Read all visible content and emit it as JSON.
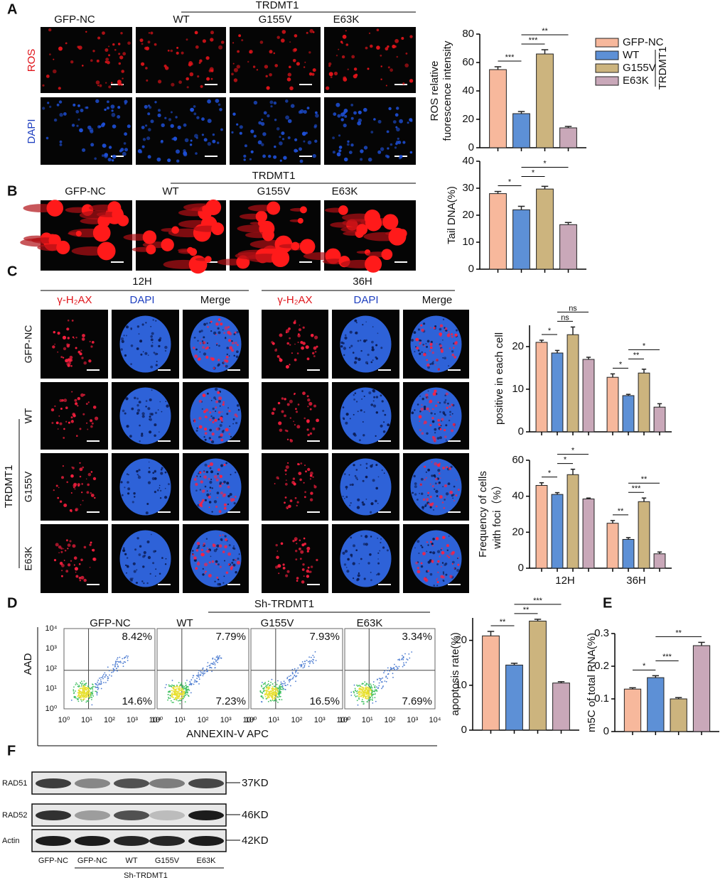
{
  "panel_labels": [
    "A",
    "B",
    "C",
    "D",
    "E",
    "F"
  ],
  "panel_a": {
    "columns": [
      "GFP-NC",
      "WT",
      "G155V",
      "E63K"
    ],
    "group_label": "TRDMT1",
    "rows": [
      "ROS",
      "DAPI"
    ]
  },
  "panel_b": {
    "columns": [
      "GFP-NC",
      "WT",
      "G155V",
      "E63K"
    ],
    "group_label": "TRDMT1"
  },
  "panel_c": {
    "times": [
      {
        "label": "12H",
        "channels": [
          "γ-H₂AX",
          "DAPI",
          "Merge"
        ]
      },
      {
        "label": "36H",
        "channels": [
          "γ-H₂AX",
          "DAPI",
          "Merge"
        ]
      }
    ],
    "rows": [
      "GFP-NC",
      "WT",
      "G155V",
      "E63K"
    ],
    "group_label": "TRDMT1"
  },
  "panel_d": {
    "columns": [
      "GFP-NC",
      "WT",
      "G155V",
      "E63K"
    ],
    "group_label": "Sh-TRDMT1",
    "x_label": "ANNEXIN-V APC",
    "y_label": "AAD",
    "ticks": [
      "10⁰",
      "10¹",
      "10²",
      "10³",
      "10⁴"
    ],
    "quadrants": [
      [
        "8.42%",
        "14.6%"
      ],
      [
        "7.79%",
        "7.23%"
      ],
      [
        "7.93%",
        "16.5%"
      ],
      [
        "3.34%",
        "7.69%"
      ]
    ]
  },
  "panel_f": {
    "bands": [
      {
        "label": "RAD51",
        "size": "37KD"
      },
      {
        "label": "RAD52",
        "size": "46KD"
      },
      {
        "label": "Actin",
        "size": "42KD"
      }
    ],
    "lanes": [
      "GFP-NC",
      "GFP-NC",
      "WT",
      "G155V",
      "E63K"
    ],
    "group_label": "Sh-TRDMT1"
  },
  "chart_data": [
    {
      "type": "bar",
      "y_label": [
        "ROS relative",
        "fuorescence intensity"
      ],
      "ylim": [
        0,
        80
      ],
      "yticks": [
        0,
        20,
        40,
        60,
        80
      ],
      "legend": "right",
      "legend_group_label": "TRDMT1",
      "series": [
        {
          "name": "GFP-NC",
          "color": "#f7b89c",
          "values": [
            55
          ],
          "errors": [
            2
          ]
        },
        {
          "name": "WT",
          "color": "#5d90d6",
          "values": [
            24
          ],
          "errors": [
            1.5
          ]
        },
        {
          "name": "G155V",
          "color": "#ccb47e",
          "values": [
            66
          ],
          "errors": [
            3
          ]
        },
        {
          "name": "E63K",
          "color": "#c9a8b9",
          "values": [
            14
          ],
          "errors": [
            1
          ]
        }
      ],
      "significance": [
        {
          "between": [
            "GFP-NC",
            "WT"
          ],
          "label": "***"
        },
        {
          "between": [
            "WT",
            "G155V"
          ],
          "label": "***"
        },
        {
          "between": [
            "WT",
            "E63K"
          ],
          "label": "**"
        }
      ]
    },
    {
      "type": "bar",
      "y_label": [
        "Tail DNA(%)"
      ],
      "ylim": [
        0,
        40
      ],
      "yticks": [
        0,
        10,
        20,
        30,
        40
      ],
      "series": [
        {
          "name": "GFP-NC",
          "color": "#f7b89c",
          "values": [
            28
          ],
          "errors": [
            0.8
          ]
        },
        {
          "name": "WT",
          "color": "#5d90d6",
          "values": [
            22
          ],
          "errors": [
            1.3
          ]
        },
        {
          "name": "G155V",
          "color": "#ccb47e",
          "values": [
            29.7
          ],
          "errors": [
            1
          ]
        },
        {
          "name": "E63K",
          "color": "#c9a8b9",
          "values": [
            16.5
          ],
          "errors": [
            0.8
          ]
        }
      ],
      "significance": [
        {
          "between": [
            "GFP-NC",
            "WT"
          ],
          "label": "*"
        },
        {
          "between": [
            "WT",
            "G155V"
          ],
          "label": "*"
        },
        {
          "between": [
            "WT",
            "E63K"
          ],
          "label": "*"
        }
      ]
    },
    {
      "type": "bar",
      "y_label": [
        "positive in each cell"
      ],
      "ylim": [
        0,
        25
      ],
      "yticks": [
        0,
        10,
        20
      ],
      "categories": [
        null,
        null
      ],
      "series": [
        {
          "name": "GFP-NC",
          "color": "#f7b89c",
          "values": [
            21,
            12.8
          ],
          "errors": [
            0.5,
            0.8
          ]
        },
        {
          "name": "WT",
          "color": "#5d90d6",
          "values": [
            18.5,
            8.5
          ],
          "errors": [
            0.6,
            0.3
          ]
        },
        {
          "name": "G155V",
          "color": "#ccb47e",
          "values": [
            22.8,
            13.8
          ],
          "errors": [
            1.8,
            0.9
          ]
        },
        {
          "name": "E63K",
          "color": "#c9a8b9",
          "values": [
            17,
            5.8
          ],
          "errors": [
            0.5,
            0.8
          ]
        }
      ],
      "significance": [
        [
          {
            "between": [
              "GFP-NC",
              "WT"
            ],
            "label": "*"
          },
          {
            "between": [
              "WT",
              "G155V"
            ],
            "label": "ns"
          },
          {
            "between": [
              "WT",
              "E63K"
            ],
            "label": "ns"
          }
        ],
        [
          {
            "between": [
              "GFP-NC",
              "WT"
            ],
            "label": "*"
          },
          {
            "between": [
              "WT",
              "G155V"
            ],
            "label": "**"
          },
          {
            "between": [
              "WT",
              "E63K"
            ],
            "label": "*"
          }
        ]
      ]
    },
    {
      "type": "bar",
      "y_label": [
        "Frequency of cells",
        "with foci（%）"
      ],
      "ylim": [
        0,
        60
      ],
      "yticks": [
        0,
        20,
        40,
        60
      ],
      "categories": [
        "12H",
        "36H"
      ],
      "series": [
        {
          "name": "GFP-NC",
          "color": "#f7b89c",
          "values": [
            46,
            25
          ],
          "errors": [
            1.5,
            1.5
          ]
        },
        {
          "name": "WT",
          "color": "#5d90d6",
          "values": [
            41,
            16
          ],
          "errors": [
            1,
            1
          ]
        },
        {
          "name": "G155V",
          "color": "#ccb47e",
          "values": [
            52,
            37
          ],
          "errors": [
            3,
            2
          ]
        },
        {
          "name": "E63K",
          "color": "#c9a8b9",
          "values": [
            38.5,
            8
          ],
          "errors": [
            0.5,
            1
          ]
        }
      ],
      "significance": [
        [
          {
            "between": [
              "GFP-NC",
              "WT"
            ],
            "label": "*"
          },
          {
            "between": [
              "WT",
              "G155V"
            ],
            "label": "*"
          },
          {
            "between": [
              "WT",
              "E63K"
            ],
            "label": "*"
          }
        ],
        [
          {
            "between": [
              "GFP-NC",
              "WT"
            ],
            "label": "**"
          },
          {
            "between": [
              "WT",
              "G155V"
            ],
            "label": "***"
          },
          {
            "between": [
              "WT",
              "E63K"
            ],
            "label": "**"
          }
        ]
      ]
    },
    {
      "type": "bar",
      "y_label": [
        "apoptosis  rate(%)"
      ],
      "ylim": [
        0,
        25
      ],
      "yticks": [
        0,
        10,
        20
      ],
      "series": [
        {
          "name": "GFP-NC",
          "color": "#f7b89c",
          "values": [
            21
          ],
          "errors": [
            1
          ]
        },
        {
          "name": "WT",
          "color": "#5d90d6",
          "values": [
            14.5
          ],
          "errors": [
            0.4
          ]
        },
        {
          "name": "G155V",
          "color": "#ccb47e",
          "values": [
            24.3
          ],
          "errors": [
            0.4
          ]
        },
        {
          "name": "E63K",
          "color": "#c9a8b9",
          "values": [
            10.5
          ],
          "errors": [
            0.3
          ]
        }
      ],
      "significance": [
        {
          "between": [
            "GFP-NC",
            "WT"
          ],
          "label": "**"
        },
        {
          "between": [
            "WT",
            "G155V"
          ],
          "label": "**"
        },
        {
          "between": [
            "WT",
            "E63K"
          ],
          "label": "***"
        }
      ]
    },
    {
      "type": "bar",
      "y_label": [
        "m5C of total RNA(%)"
      ],
      "ylim": [
        0,
        0.3
      ],
      "yticks": [
        0,
        0.1,
        0.2,
        0.3
      ],
      "series": [
        {
          "name": "GFP-NC",
          "color": "#f7b89c",
          "values": [
            0.13
          ],
          "errors": [
            0.004
          ]
        },
        {
          "name": "WT",
          "color": "#5d90d6",
          "values": [
            0.165
          ],
          "errors": [
            0.006
          ]
        },
        {
          "name": "G155V",
          "color": "#ccb47e",
          "values": [
            0.1
          ],
          "errors": [
            0.004
          ]
        },
        {
          "name": "E63K",
          "color": "#c9a8b9",
          "values": [
            0.263
          ],
          "errors": [
            0.01
          ]
        }
      ],
      "significance": [
        {
          "between": [
            "GFP-NC",
            "WT"
          ],
          "label": "*"
        },
        {
          "between": [
            "WT",
            "G155V"
          ],
          "label": "***"
        },
        {
          "between": [
            "WT",
            "E63K"
          ],
          "label": "**"
        }
      ]
    }
  ]
}
